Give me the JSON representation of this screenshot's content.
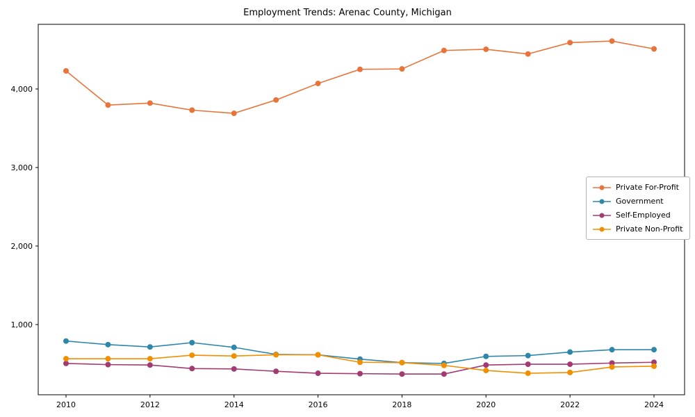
{
  "chart_data": {
    "type": "line",
    "title": "Employment Trends: Arenac County, Michigan",
    "xlabel": "",
    "ylabel": "",
    "x": [
      2010,
      2011,
      2012,
      2013,
      2014,
      2015,
      2016,
      2017,
      2018,
      2019,
      2020,
      2021,
      2022,
      2023,
      2024
    ],
    "x_tick_labels": [
      "2010",
      "2012",
      "2014",
      "2016",
      "2018",
      "2020",
      "2022",
      "2024"
    ],
    "y_ticks": [
      1000,
      2000,
      3000,
      4000
    ],
    "y_tick_labels": [
      "1,000",
      "2,000",
      "3,000",
      "4,000"
    ],
    "xlim": [
      2009.3,
      2024.7
    ],
    "ylim": [
      100,
      4820
    ],
    "grid": false,
    "legend_position": "center right",
    "series": [
      {
        "name": "Private For-Profit",
        "color": "#E8743B",
        "values": [
          4230,
          3795,
          3820,
          3730,
          3690,
          3860,
          4070,
          4250,
          4255,
          4490,
          4505,
          4445,
          4590,
          4610,
          4510
        ]
      },
      {
        "name": "Government",
        "color": "#2E86AB",
        "values": [
          790,
          745,
          715,
          770,
          710,
          620,
          615,
          560,
          515,
          505,
          595,
          605,
          650,
          680,
          680
        ]
      },
      {
        "name": "Self-Employed",
        "color": "#A23B72",
        "values": [
          505,
          490,
          485,
          440,
          435,
          405,
          380,
          375,
          370,
          370,
          485,
          495,
          495,
          510,
          520
        ]
      },
      {
        "name": "Private Non-Profit",
        "color": "#F18F01",
        "values": [
          565,
          565,
          565,
          610,
          600,
          615,
          615,
          520,
          515,
          480,
          415,
          380,
          390,
          460,
          470
        ]
      }
    ]
  }
}
